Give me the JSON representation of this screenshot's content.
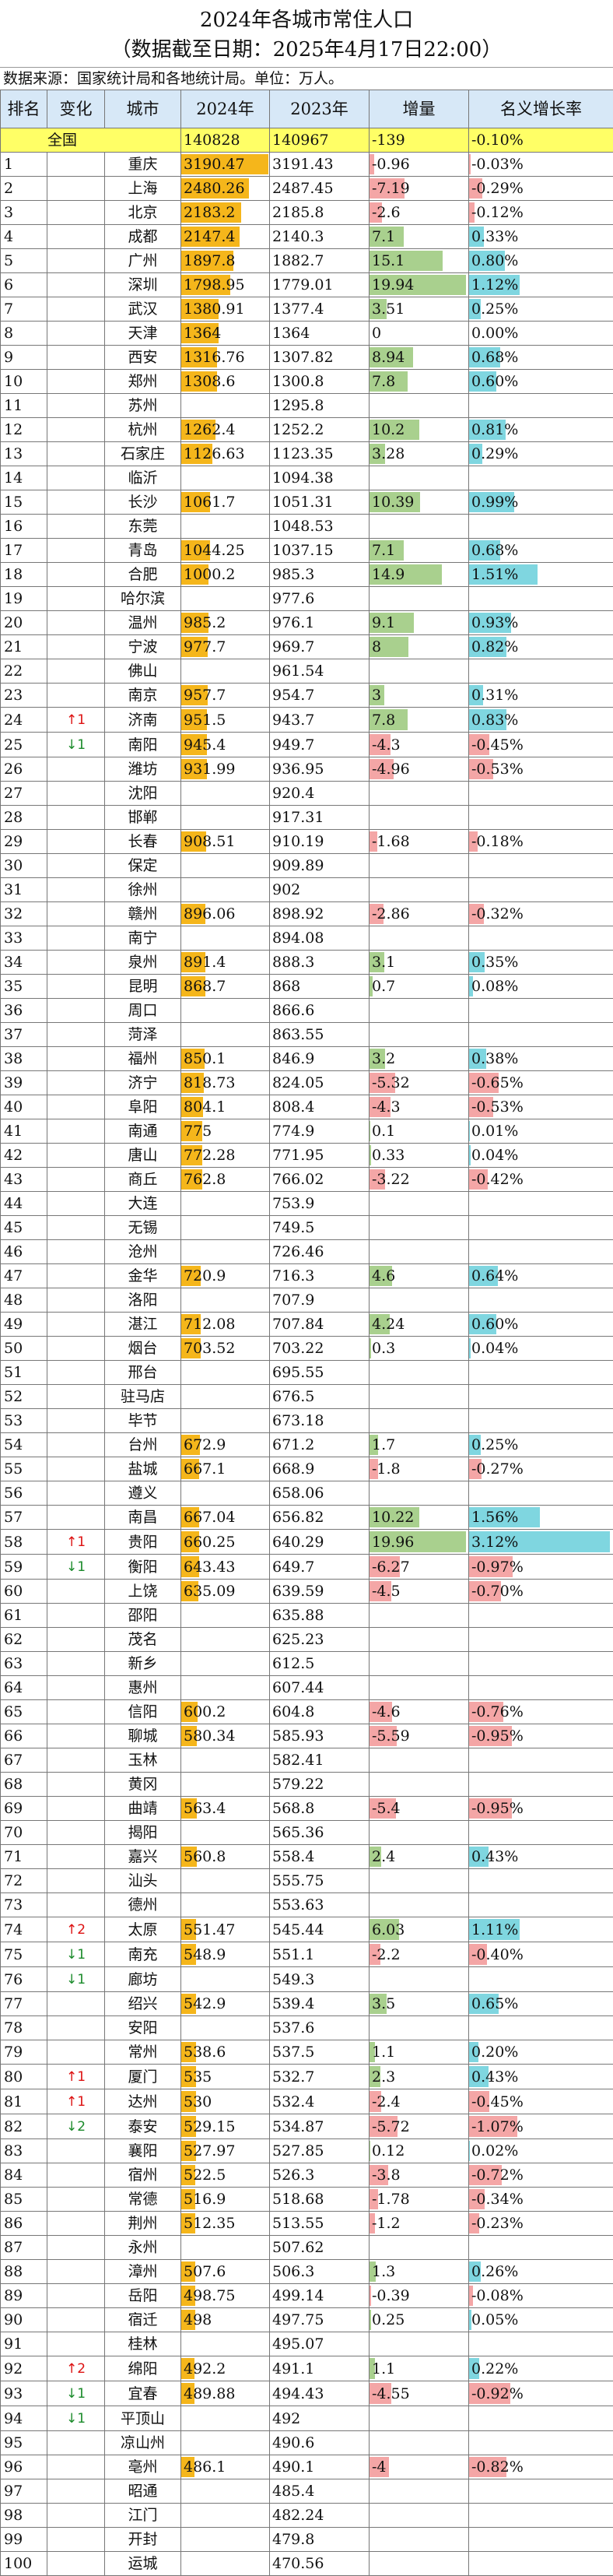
{
  "title": {
    "line1": "2024年各城市常住人口",
    "line2": "（数据截至日期：2025年4月17日22:00）"
  },
  "source": "数据来源：国家统计局和各地统计局。单位：万人。",
  "headers": [
    "排名",
    "变化",
    "城市",
    "2024年",
    "2023年",
    "增量",
    "名义增长率"
  ],
  "total": {
    "label": "全国",
    "y2024": "140828",
    "y2023": "140967",
    "inc": "-139",
    "rate": "-0.10%"
  },
  "colors": {
    "bar_2024": "#f5b61b",
    "bar_inc_pos": "#a9d08e",
    "bar_neg": "#f4a6a6",
    "bar_rate_pos": "#7fd6e0",
    "header_bg": "#d7e8f7",
    "total_bg": "#ffff66"
  },
  "rows": [
    {
      "rank": "1",
      "chg": "",
      "city": "重庆",
      "y2024": "3190.47",
      "y2023": "3191.43",
      "inc": "-0.96",
      "rate": "-0.03%"
    },
    {
      "rank": "2",
      "chg": "",
      "city": "上海",
      "y2024": "2480.26",
      "y2023": "2487.45",
      "inc": "-7.19",
      "rate": "-0.29%"
    },
    {
      "rank": "3",
      "chg": "",
      "city": "北京",
      "y2024": "2183.2",
      "y2023": "2185.8",
      "inc": "-2.6",
      "rate": "-0.12%"
    },
    {
      "rank": "4",
      "chg": "",
      "city": "成都",
      "y2024": "2147.4",
      "y2023": "2140.3",
      "inc": "7.1",
      "rate": "0.33%"
    },
    {
      "rank": "5",
      "chg": "",
      "city": "广州",
      "y2024": "1897.8",
      "y2023": "1882.7",
      "inc": "15.1",
      "rate": "0.80%"
    },
    {
      "rank": "6",
      "chg": "",
      "city": "深圳",
      "y2024": "1798.95",
      "y2023": "1779.01",
      "inc": "19.94",
      "rate": "1.12%"
    },
    {
      "rank": "7",
      "chg": "",
      "city": "武汉",
      "y2024": "1380.91",
      "y2023": "1377.4",
      "inc": "3.51",
      "rate": "0.25%"
    },
    {
      "rank": "8",
      "chg": "",
      "city": "天津",
      "y2024": "1364",
      "y2023": "1364",
      "inc": "0",
      "rate": "0.00%"
    },
    {
      "rank": "9",
      "chg": "",
      "city": "西安",
      "y2024": "1316.76",
      "y2023": "1307.82",
      "inc": "8.94",
      "rate": "0.68%"
    },
    {
      "rank": "10",
      "chg": "",
      "city": "郑州",
      "y2024": "1308.6",
      "y2023": "1300.8",
      "inc": "7.8",
      "rate": "0.60%"
    },
    {
      "rank": "11",
      "chg": "",
      "city": "苏州",
      "y2024": "",
      "y2023": "1295.8",
      "inc": "",
      "rate": ""
    },
    {
      "rank": "12",
      "chg": "",
      "city": "杭州",
      "y2024": "1262.4",
      "y2023": "1252.2",
      "inc": "10.2",
      "rate": "0.81%"
    },
    {
      "rank": "13",
      "chg": "",
      "city": "石家庄",
      "y2024": "1126.63",
      "y2023": "1123.35",
      "inc": "3.28",
      "rate": "0.29%"
    },
    {
      "rank": "14",
      "chg": "",
      "city": "临沂",
      "y2024": "",
      "y2023": "1094.38",
      "inc": "",
      "rate": ""
    },
    {
      "rank": "15",
      "chg": "",
      "city": "长沙",
      "y2024": "1061.7",
      "y2023": "1051.31",
      "inc": "10.39",
      "rate": "0.99%"
    },
    {
      "rank": "16",
      "chg": "",
      "city": "东莞",
      "y2024": "",
      "y2023": "1048.53",
      "inc": "",
      "rate": ""
    },
    {
      "rank": "17",
      "chg": "",
      "city": "青岛",
      "y2024": "1044.25",
      "y2023": "1037.15",
      "inc": "7.1",
      "rate": "0.68%"
    },
    {
      "rank": "18",
      "chg": "",
      "city": "合肥",
      "y2024": "1000.2",
      "y2023": "985.3",
      "inc": "14.9",
      "rate": "1.51%"
    },
    {
      "rank": "19",
      "chg": "",
      "city": "哈尔滨",
      "y2024": "",
      "y2023": "977.6",
      "inc": "",
      "rate": ""
    },
    {
      "rank": "20",
      "chg": "",
      "city": "温州",
      "y2024": "985.2",
      "y2023": "976.1",
      "inc": "9.1",
      "rate": "0.93%"
    },
    {
      "rank": "21",
      "chg": "",
      "city": "宁波",
      "y2024": "977.7",
      "y2023": "969.7",
      "inc": "8",
      "rate": "0.82%"
    },
    {
      "rank": "22",
      "chg": "",
      "city": "佛山",
      "y2024": "",
      "y2023": "961.54",
      "inc": "",
      "rate": ""
    },
    {
      "rank": "23",
      "chg": "",
      "city": "南京",
      "y2024": "957.7",
      "y2023": "954.7",
      "inc": "3",
      "rate": "0.31%"
    },
    {
      "rank": "24",
      "chg": "↑1",
      "city": "济南",
      "y2024": "951.5",
      "y2023": "943.7",
      "inc": "7.8",
      "rate": "0.83%"
    },
    {
      "rank": "25",
      "chg": "↓1",
      "city": "南阳",
      "y2024": "945.4",
      "y2023": "949.7",
      "inc": "-4.3",
      "rate": "-0.45%"
    },
    {
      "rank": "26",
      "chg": "",
      "city": "潍坊",
      "y2024": "931.99",
      "y2023": "936.95",
      "inc": "-4.96",
      "rate": "-0.53%"
    },
    {
      "rank": "27",
      "chg": "",
      "city": "沈阳",
      "y2024": "",
      "y2023": "920.4",
      "inc": "",
      "rate": ""
    },
    {
      "rank": "28",
      "chg": "",
      "city": "邯郸",
      "y2024": "",
      "y2023": "917.31",
      "inc": "",
      "rate": ""
    },
    {
      "rank": "29",
      "chg": "",
      "city": "长春",
      "y2024": "908.51",
      "y2023": "910.19",
      "inc": "-1.68",
      "rate": "-0.18%"
    },
    {
      "rank": "30",
      "chg": "",
      "city": "保定",
      "y2024": "",
      "y2023": "909.89",
      "inc": "",
      "rate": ""
    },
    {
      "rank": "31",
      "chg": "",
      "city": "徐州",
      "y2024": "",
      "y2023": "902",
      "inc": "",
      "rate": ""
    },
    {
      "rank": "32",
      "chg": "",
      "city": "赣州",
      "y2024": "896.06",
      "y2023": "898.92",
      "inc": "-2.86",
      "rate": "-0.32%"
    },
    {
      "rank": "33",
      "chg": "",
      "city": "南宁",
      "y2024": "",
      "y2023": "894.08",
      "inc": "",
      "rate": ""
    },
    {
      "rank": "34",
      "chg": "",
      "city": "泉州",
      "y2024": "891.4",
      "y2023": "888.3",
      "inc": "3.1",
      "rate": "0.35%"
    },
    {
      "rank": "35",
      "chg": "",
      "city": "昆明",
      "y2024": "868.7",
      "y2023": "868",
      "inc": "0.7",
      "rate": "0.08%"
    },
    {
      "rank": "36",
      "chg": "",
      "city": "周口",
      "y2024": "",
      "y2023": "866.6",
      "inc": "",
      "rate": ""
    },
    {
      "rank": "37",
      "chg": "",
      "city": "菏泽",
      "y2024": "",
      "y2023": "863.55",
      "inc": "",
      "rate": ""
    },
    {
      "rank": "38",
      "chg": "",
      "city": "福州",
      "y2024": "850.1",
      "y2023": "846.9",
      "inc": "3.2",
      "rate": "0.38%"
    },
    {
      "rank": "39",
      "chg": "",
      "city": "济宁",
      "y2024": "818.73",
      "y2023": "824.05",
      "inc": "-5.32",
      "rate": "-0.65%"
    },
    {
      "rank": "40",
      "chg": "",
      "city": "阜阳",
      "y2024": "804.1",
      "y2023": "808.4",
      "inc": "-4.3",
      "rate": "-0.53%"
    },
    {
      "rank": "41",
      "chg": "",
      "city": "南通",
      "y2024": "775",
      "y2023": "774.9",
      "inc": "0.1",
      "rate": "0.01%"
    },
    {
      "rank": "42",
      "chg": "",
      "city": "唐山",
      "y2024": "772.28",
      "y2023": "771.95",
      "inc": "0.33",
      "rate": "0.04%"
    },
    {
      "rank": "43",
      "chg": "",
      "city": "商丘",
      "y2024": "762.8",
      "y2023": "766.02",
      "inc": "-3.22",
      "rate": "-0.42%"
    },
    {
      "rank": "44",
      "chg": "",
      "city": "大连",
      "y2024": "",
      "y2023": "753.9",
      "inc": "",
      "rate": ""
    },
    {
      "rank": "45",
      "chg": "",
      "city": "无锡",
      "y2024": "",
      "y2023": "749.5",
      "inc": "",
      "rate": ""
    },
    {
      "rank": "46",
      "chg": "",
      "city": "沧州",
      "y2024": "",
      "y2023": "726.46",
      "inc": "",
      "rate": ""
    },
    {
      "rank": "47",
      "chg": "",
      "city": "金华",
      "y2024": "720.9",
      "y2023": "716.3",
      "inc": "4.6",
      "rate": "0.64%"
    },
    {
      "rank": "48",
      "chg": "",
      "city": "洛阳",
      "y2024": "",
      "y2023": "707.9",
      "inc": "",
      "rate": ""
    },
    {
      "rank": "49",
      "chg": "",
      "city": "湛江",
      "y2024": "712.08",
      "y2023": "707.84",
      "inc": "4.24",
      "rate": "0.60%"
    },
    {
      "rank": "50",
      "chg": "",
      "city": "烟台",
      "y2024": "703.52",
      "y2023": "703.22",
      "inc": "0.3",
      "rate": "0.04%"
    },
    {
      "rank": "51",
      "chg": "",
      "city": "邢台",
      "y2024": "",
      "y2023": "695.55",
      "inc": "",
      "rate": ""
    },
    {
      "rank": "52",
      "chg": "",
      "city": "驻马店",
      "y2024": "",
      "y2023": "676.5",
      "inc": "",
      "rate": ""
    },
    {
      "rank": "53",
      "chg": "",
      "city": "毕节",
      "y2024": "",
      "y2023": "673.18",
      "inc": "",
      "rate": ""
    },
    {
      "rank": "54",
      "chg": "",
      "city": "台州",
      "y2024": "672.9",
      "y2023": "671.2",
      "inc": "1.7",
      "rate": "0.25%"
    },
    {
      "rank": "55",
      "chg": "",
      "city": "盐城",
      "y2024": "667.1",
      "y2023": "668.9",
      "inc": "-1.8",
      "rate": "-0.27%"
    },
    {
      "rank": "56",
      "chg": "",
      "city": "遵义",
      "y2024": "",
      "y2023": "658.06",
      "inc": "",
      "rate": ""
    },
    {
      "rank": "57",
      "chg": "",
      "city": "南昌",
      "y2024": "667.04",
      "y2023": "656.82",
      "inc": "10.22",
      "rate": "1.56%"
    },
    {
      "rank": "58",
      "chg": "↑1",
      "city": "贵阳",
      "y2024": "660.25",
      "y2023": "640.29",
      "inc": "19.96",
      "rate": "3.12%"
    },
    {
      "rank": "59",
      "chg": "↓1",
      "city": "衡阳",
      "y2024": "643.43",
      "y2023": "649.7",
      "inc": "-6.27",
      "rate": "-0.97%"
    },
    {
      "rank": "60",
      "chg": "",
      "city": "上饶",
      "y2024": "635.09",
      "y2023": "639.59",
      "inc": "-4.5",
      "rate": "-0.70%"
    },
    {
      "rank": "61",
      "chg": "",
      "city": "邵阳",
      "y2024": "",
      "y2023": "635.88",
      "inc": "",
      "rate": ""
    },
    {
      "rank": "62",
      "chg": "",
      "city": "茂名",
      "y2024": "",
      "y2023": "625.23",
      "inc": "",
      "rate": ""
    },
    {
      "rank": "63",
      "chg": "",
      "city": "新乡",
      "y2024": "",
      "y2023": "612.5",
      "inc": "",
      "rate": ""
    },
    {
      "rank": "64",
      "chg": "",
      "city": "惠州",
      "y2024": "",
      "y2023": "607.44",
      "inc": "",
      "rate": ""
    },
    {
      "rank": "65",
      "chg": "",
      "city": "信阳",
      "y2024": "600.2",
      "y2023": "604.8",
      "inc": "-4.6",
      "rate": "-0.76%"
    },
    {
      "rank": "66",
      "chg": "",
      "city": "聊城",
      "y2024": "580.34",
      "y2023": "585.93",
      "inc": "-5.59",
      "rate": "-0.95%"
    },
    {
      "rank": "67",
      "chg": "",
      "city": "玉林",
      "y2024": "",
      "y2023": "582.41",
      "inc": "",
      "rate": ""
    },
    {
      "rank": "68",
      "chg": "",
      "city": "黄冈",
      "y2024": "",
      "y2023": "579.22",
      "inc": "",
      "rate": ""
    },
    {
      "rank": "69",
      "chg": "",
      "city": "曲靖",
      "y2024": "563.4",
      "y2023": "568.8",
      "inc": "-5.4",
      "rate": "-0.95%"
    },
    {
      "rank": "70",
      "chg": "",
      "city": "揭阳",
      "y2024": "",
      "y2023": "565.36",
      "inc": "",
      "rate": ""
    },
    {
      "rank": "71",
      "chg": "",
      "city": "嘉兴",
      "y2024": "560.8",
      "y2023": "558.4",
      "inc": "2.4",
      "rate": "0.43%"
    },
    {
      "rank": "72",
      "chg": "",
      "city": "汕头",
      "y2024": "",
      "y2023": "555.75",
      "inc": "",
      "rate": ""
    },
    {
      "rank": "73",
      "chg": "",
      "city": "德州",
      "y2024": "",
      "y2023": "553.63",
      "inc": "",
      "rate": ""
    },
    {
      "rank": "74",
      "chg": "↑2",
      "city": "太原",
      "y2024": "551.47",
      "y2023": "545.44",
      "inc": "6.03",
      "rate": "1.11%"
    },
    {
      "rank": "75",
      "chg": "↓1",
      "city": "南充",
      "y2024": "548.9",
      "y2023": "551.1",
      "inc": "-2.2",
      "rate": "-0.40%"
    },
    {
      "rank": "76",
      "chg": "↓1",
      "city": "廊坊",
      "y2024": "",
      "y2023": "549.3",
      "inc": "",
      "rate": ""
    },
    {
      "rank": "77",
      "chg": "",
      "city": "绍兴",
      "y2024": "542.9",
      "y2023": "539.4",
      "inc": "3.5",
      "rate": "0.65%"
    },
    {
      "rank": "78",
      "chg": "",
      "city": "安阳",
      "y2024": "",
      "y2023": "537.6",
      "inc": "",
      "rate": ""
    },
    {
      "rank": "79",
      "chg": "",
      "city": "常州",
      "y2024": "538.6",
      "y2023": "537.5",
      "inc": "1.1",
      "rate": "0.20%"
    },
    {
      "rank": "80",
      "chg": "↑1",
      "city": "厦门",
      "y2024": "535",
      "y2023": "532.7",
      "inc": "2.3",
      "rate": "0.43%"
    },
    {
      "rank": "81",
      "chg": "↑1",
      "city": "达州",
      "y2024": "530",
      "y2023": "532.4",
      "inc": "-2.4",
      "rate": "-0.45%"
    },
    {
      "rank": "82",
      "chg": "↓2",
      "city": "泰安",
      "y2024": "529.15",
      "y2023": "534.87",
      "inc": "-5.72",
      "rate": "-1.07%"
    },
    {
      "rank": "83",
      "chg": "",
      "city": "襄阳",
      "y2024": "527.97",
      "y2023": "527.85",
      "inc": "0.12",
      "rate": "0.02%"
    },
    {
      "rank": "84",
      "chg": "",
      "city": "宿州",
      "y2024": "522.5",
      "y2023": "526.3",
      "inc": "-3.8",
      "rate": "-0.72%"
    },
    {
      "rank": "85",
      "chg": "",
      "city": "常德",
      "y2024": "516.9",
      "y2023": "518.68",
      "inc": "-1.78",
      "rate": "-0.34%"
    },
    {
      "rank": "86",
      "chg": "",
      "city": "荆州",
      "y2024": "512.35",
      "y2023": "513.55",
      "inc": "-1.2",
      "rate": "-0.23%"
    },
    {
      "rank": "87",
      "chg": "",
      "city": "永州",
      "y2024": "",
      "y2023": "507.62",
      "inc": "",
      "rate": ""
    },
    {
      "rank": "88",
      "chg": "",
      "city": "漳州",
      "y2024": "507.6",
      "y2023": "506.3",
      "inc": "1.3",
      "rate": "0.26%"
    },
    {
      "rank": "89",
      "chg": "",
      "city": "岳阳",
      "y2024": "498.75",
      "y2023": "499.14",
      "inc": "-0.39",
      "rate": "-0.08%"
    },
    {
      "rank": "90",
      "chg": "",
      "city": "宿迁",
      "y2024": "498",
      "y2023": "497.75",
      "inc": "0.25",
      "rate": "0.05%"
    },
    {
      "rank": "91",
      "chg": "",
      "city": "桂林",
      "y2024": "",
      "y2023": "495.07",
      "inc": "",
      "rate": ""
    },
    {
      "rank": "92",
      "chg": "↑2",
      "city": "绵阳",
      "y2024": "492.2",
      "y2023": "491.1",
      "inc": "1.1",
      "rate": "0.22%"
    },
    {
      "rank": "93",
      "chg": "↓1",
      "city": "宜春",
      "y2024": "489.88",
      "y2023": "494.43",
      "inc": "-4.55",
      "rate": "-0.92%"
    },
    {
      "rank": "94",
      "chg": "↓1",
      "city": "平顶山",
      "y2024": "",
      "y2023": "492",
      "inc": "",
      "rate": ""
    },
    {
      "rank": "95",
      "chg": "",
      "city": "凉山州",
      "y2024": "",
      "y2023": "490.6",
      "inc": "",
      "rate": ""
    },
    {
      "rank": "96",
      "chg": "",
      "city": "亳州",
      "y2024": "486.1",
      "y2023": "490.1",
      "inc": "-4",
      "rate": "-0.82%"
    },
    {
      "rank": "97",
      "chg": "",
      "city": "昭通",
      "y2024": "",
      "y2023": "485.4",
      "inc": "",
      "rate": ""
    },
    {
      "rank": "98",
      "chg": "",
      "city": "江门",
      "y2024": "",
      "y2023": "482.24",
      "inc": "",
      "rate": ""
    },
    {
      "rank": "99",
      "chg": "",
      "city": "开封",
      "y2024": "",
      "y2023": "479.8",
      "inc": "",
      "rate": ""
    },
    {
      "rank": "100",
      "chg": "",
      "city": "运城",
      "y2024": "",
      "y2023": "470.56",
      "inc": "",
      "rate": ""
    }
  ]
}
